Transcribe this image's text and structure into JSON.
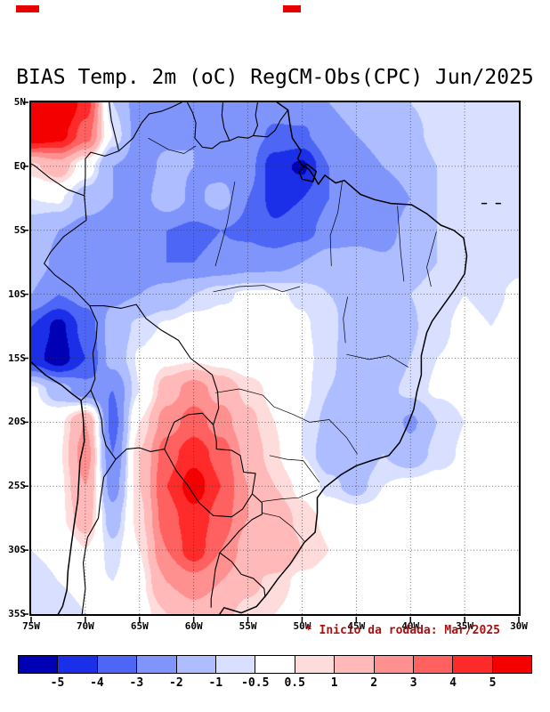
{
  "chart": {
    "title": "BIAS Temp. 2m (oC) RegCM-Obs(CPC) Jun/2025",
    "annotation": "* Inicio da rodada: Mar/2025",
    "annotation_color": "#aa1111"
  },
  "chart_data": {
    "type": "heatmap",
    "title": "BIAS Temp. 2m (oC) RegCM-Obs(CPC) Jun/2025",
    "annotation": "* Inicio da rodada: Mar/2025",
    "units": "oC",
    "lon_range": [
      -75,
      -30
    ],
    "lat_range": [
      -35,
      5
    ],
    "lon_ticks": {
      "labels": [
        "75W",
        "70W",
        "65W",
        "60W",
        "55W",
        "50W",
        "45W",
        "40W",
        "35W",
        "30W"
      ],
      "values": [
        -75,
        -70,
        -65,
        -60,
        -55,
        -50,
        -45,
        -40,
        -35,
        -30
      ]
    },
    "lat_ticks": {
      "labels": [
        "5N",
        "EQ",
        "5S",
        "10S",
        "15S",
        "20S",
        "25S",
        "30S",
        "35S"
      ],
      "values": [
        5,
        0,
        -5,
        -10,
        -15,
        -20,
        -25,
        -30,
        -35
      ]
    },
    "gridline_spacing_deg": 5,
    "levels": [
      -5,
      -4,
      -3,
      -2,
      -1,
      -0.5,
      0.5,
      1,
      2,
      3,
      4,
      5
    ],
    "colors": [
      "#0000b4",
      "#1c2fe8",
      "#4d66f5",
      "#8095fb",
      "#adbdff",
      "#d8dfff",
      "#ffffff",
      "#ffdcdc",
      "#ffb9b9",
      "#ff9090",
      "#ff6060",
      "#ff2a2a",
      "#f50000"
    ],
    "colorbar_labels": [
      "-5",
      "-4",
      "-3",
      "-2",
      "-1",
      "-0.5",
      "0.5",
      "1",
      "2",
      "3",
      "4",
      "5"
    ],
    "grid_lon": [
      -75,
      -72.5,
      -70,
      -67.5,
      -65,
      -62.5,
      -60,
      -57.5,
      -55,
      -52.5,
      -50,
      -47.5,
      -45,
      -42.5,
      -40,
      -37.5,
      -35,
      -32.5,
      -30
    ],
    "grid_lat": [
      5,
      2.5,
      0,
      -2.5,
      -5,
      -7.5,
      -10,
      -12.5,
      -15,
      -17.5,
      -20,
      -22.5,
      -25,
      -27.5,
      -30,
      -32.5,
      -35
    ],
    "values": [
      [
        6.5,
        6.8,
        4.5,
        -1.0,
        -2.5,
        -2.2,
        -2.0,
        -2.5,
        -2.2,
        -2.5,
        -2.2,
        -2.0,
        -1.8,
        -1.5,
        -1.0,
        -0.8,
        -0.6,
        -0.8,
        -0.6
      ],
      [
        6.0,
        5.5,
        3.5,
        -0.5,
        -2.5,
        -2.2,
        -2.0,
        -2.3,
        -2.5,
        -3.2,
        -3.2,
        -2.2,
        -2.0,
        -1.6,
        -1.2,
        -0.8,
        -0.6,
        -0.8,
        -0.6
      ],
      [
        0.8,
        1.5,
        0.0,
        -2.0,
        -2.4,
        -1.8,
        -2.0,
        -2.4,
        -2.6,
        -4.6,
        -5.2,
        -3.0,
        -2.5,
        -2.0,
        -1.5,
        -1.0,
        -0.7,
        -0.8,
        -0.6
      ],
      [
        -0.5,
        -0.4,
        -1.5,
        -2.0,
        -2.4,
        -1.4,
        -2.2,
        -1.6,
        -3.0,
        -4.4,
        -4.0,
        -3.0,
        -2.6,
        -3.0,
        -2.0,
        -1.0,
        -0.8,
        -0.6,
        -0.7
      ],
      [
        -1.5,
        -2.0,
        -2.4,
        -2.5,
        -3.0,
        -3.0,
        -3.2,
        -3.0,
        -3.2,
        -3.8,
        -3.4,
        -2.6,
        -2.5,
        -2.6,
        -1.5,
        -1.0,
        -0.8,
        -1.0,
        -0.8
      ],
      [
        -1.5,
        -2.2,
        -2.5,
        -2.4,
        -2.8,
        -3.0,
        -3.0,
        -2.8,
        -2.5,
        -2.4,
        -2.0,
        -1.6,
        -1.5,
        -1.8,
        -1.4,
        -1.0,
        -0.8,
        -0.8,
        -0.6
      ],
      [
        -2.0,
        -3.0,
        -2.6,
        -2.2,
        -2.0,
        -1.6,
        -1.0,
        -0.6,
        -0.4,
        -0.4,
        -0.6,
        -1.0,
        -1.2,
        -1.5,
        -1.0,
        -0.7,
        -0.5,
        -0.6,
        -0.4
      ],
      [
        -4.0,
        -5.3,
        -3.6,
        -1.6,
        -0.8,
        -0.4,
        -0.1,
        -0.2,
        -0.3,
        -0.2,
        -0.4,
        -0.8,
        -1.5,
        -1.8,
        -1.1,
        -0.6,
        -0.4,
        -0.5,
        -0.3
      ],
      [
        -4.5,
        -5.6,
        -4.0,
        -1.6,
        -0.4,
        0.3,
        0.4,
        0.2,
        0.0,
        -0.2,
        -0.3,
        -0.8,
        -1.8,
        -2.0,
        -1.0,
        -0.5,
        -0.4,
        -0.4,
        -0.3
      ],
      [
        -0.3,
        -1.5,
        -2.6,
        -3.0,
        -0.5,
        1.5,
        2.5,
        1.6,
        0.8,
        0.3,
        -0.3,
        -1.0,
        -1.5,
        -1.3,
        -0.8,
        -0.4,
        -0.3,
        -0.3,
        -0.2
      ],
      [
        0.0,
        0.3,
        2.0,
        -3.4,
        0.5,
        2.5,
        3.5,
        2.5,
        1.2,
        0.5,
        -0.5,
        -1.2,
        -1.5,
        -1.0,
        -2.2,
        -1.0,
        -0.5,
        -0.3,
        -0.3
      ],
      [
        0.0,
        0.4,
        2.5,
        -3.0,
        1.0,
        3.6,
        4.6,
        3.6,
        1.6,
        0.6,
        -0.5,
        -1.5,
        -1.8,
        -1.0,
        -1.5,
        -0.8,
        -0.4,
        -0.3,
        -0.2
      ],
      [
        0.0,
        0.3,
        2.0,
        -2.5,
        1.0,
        4.0,
        5.6,
        4.0,
        2.0,
        1.0,
        0.3,
        -0.8,
        -1.3,
        -0.5,
        -0.3,
        -0.2,
        -0.2,
        -0.2,
        -0.1
      ],
      [
        -0.3,
        0.3,
        1.5,
        -1.5,
        0.8,
        3.6,
        4.6,
        3.6,
        2.0,
        1.5,
        0.8,
        0.3,
        0.0,
        -0.2,
        -0.2,
        -0.1,
        -0.1,
        -0.1,
        -0.1
      ],
      [
        -0.5,
        -0.3,
        0.5,
        -0.8,
        0.5,
        3.0,
        4.6,
        3.0,
        1.5,
        2.0,
        1.0,
        0.5,
        0.2,
        0.0,
        0.0,
        0.0,
        0.0,
        0.0,
        0.0
      ],
      [
        -0.8,
        -0.5,
        -0.3,
        -0.5,
        0.3,
        2.0,
        2.6,
        2.0,
        1.2,
        0.8,
        0.3,
        0.2,
        0.0,
        0.0,
        0.0,
        0.0,
        0.0,
        0.0,
        0.0
      ],
      [
        -1.0,
        -0.8,
        -0.5,
        -0.3,
        0.2,
        1.0,
        1.6,
        1.2,
        0.8,
        0.5,
        0.2,
        0.0,
        0.0,
        0.0,
        0.0,
        0.0,
        0.0,
        0.0,
        0.0
      ]
    ]
  }
}
